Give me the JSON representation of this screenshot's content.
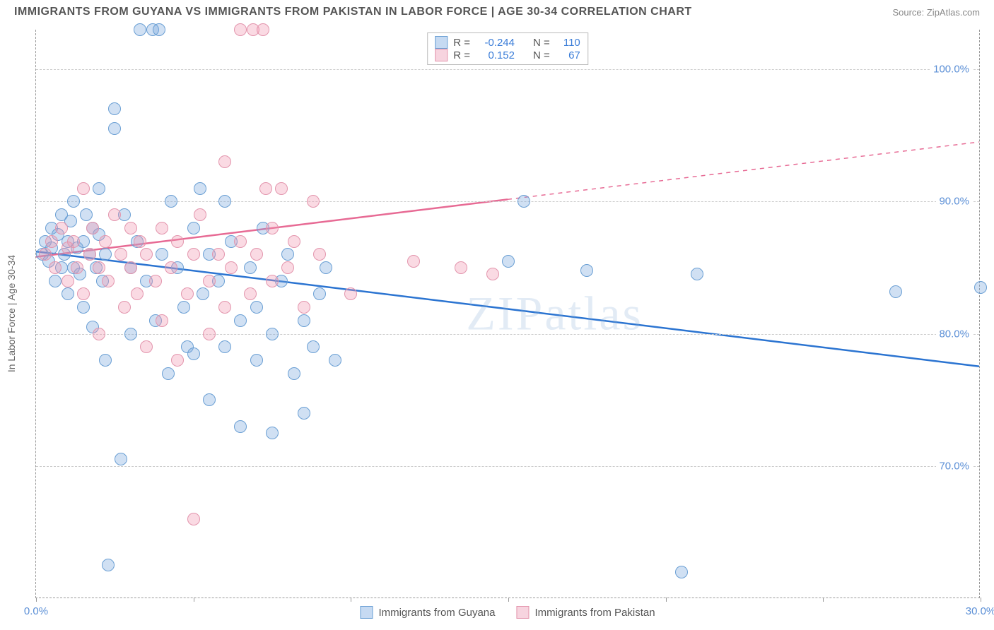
{
  "header": {
    "title": "IMMIGRANTS FROM GUYANA VS IMMIGRANTS FROM PAKISTAN IN LABOR FORCE | AGE 30-34 CORRELATION CHART",
    "source": "Source: ZipAtlas.com"
  },
  "chart": {
    "type": "scatter",
    "y_axis_label": "In Labor Force | Age 30-34",
    "watermark": "ZIPatlas",
    "background_color": "#ffffff",
    "grid_color": "#d0d0d0",
    "axis_color": "#999999",
    "x_domain": [
      0,
      30
    ],
    "y_domain": [
      60,
      103
    ],
    "y_ticks": [
      70,
      80,
      90,
      100
    ],
    "y_tick_labels": [
      "70.0%",
      "80.0%",
      "90.0%",
      "100.0%"
    ],
    "x_ticks": [
      0,
      5,
      10,
      15,
      20,
      25,
      30
    ],
    "x_tick_labels": {
      "0": "0.0%",
      "30": "30.0%"
    },
    "point_radius": 9,
    "point_stroke_width": 1.5,
    "series": [
      {
        "name": "Immigrants from Guyana",
        "fill_color": "rgba(120,165,220,0.35)",
        "stroke_color": "#6a9fd4",
        "swatch_fill": "#c6daf2",
        "swatch_border": "#6a9fd4",
        "R": "-0.244",
        "N": "110",
        "trend": {
          "x1": 0,
          "y1": 86.2,
          "x2": 30,
          "y2": 77.5,
          "solid_until_x": 30,
          "color": "#2b74d1",
          "width": 2.5
        },
        "points": [
          [
            0.2,
            86
          ],
          [
            0.3,
            87
          ],
          [
            0.4,
            85.5
          ],
          [
            0.5,
            88
          ],
          [
            0.5,
            86.5
          ],
          [
            0.6,
            84
          ],
          [
            0.7,
            87.5
          ],
          [
            0.8,
            85
          ],
          [
            0.8,
            89
          ],
          [
            0.9,
            86
          ],
          [
            1.0,
            87
          ],
          [
            1.0,
            83
          ],
          [
            1.1,
            88.5
          ],
          [
            1.2,
            85
          ],
          [
            1.2,
            90
          ],
          [
            1.3,
            86.5
          ],
          [
            1.4,
            84.5
          ],
          [
            1.5,
            87
          ],
          [
            1.5,
            82
          ],
          [
            1.6,
            89
          ],
          [
            1.7,
            86
          ],
          [
            1.8,
            88
          ],
          [
            1.8,
            80.5
          ],
          [
            1.9,
            85
          ],
          [
            2.0,
            87.5
          ],
          [
            2.0,
            91
          ],
          [
            2.1,
            84
          ],
          [
            2.2,
            86
          ],
          [
            2.2,
            78
          ],
          [
            2.3,
            62.5
          ],
          [
            2.5,
            95.5
          ],
          [
            2.5,
            97
          ],
          [
            2.7,
            70.5
          ],
          [
            2.8,
            89
          ],
          [
            3.0,
            85
          ],
          [
            3.0,
            80
          ],
          [
            3.2,
            87
          ],
          [
            3.3,
            103
          ],
          [
            3.5,
            84
          ],
          [
            3.7,
            103
          ],
          [
            3.8,
            81
          ],
          [
            3.9,
            103
          ],
          [
            4.0,
            86
          ],
          [
            4.2,
            77
          ],
          [
            4.3,
            90
          ],
          [
            4.5,
            85
          ],
          [
            4.7,
            82
          ],
          [
            4.8,
            79
          ],
          [
            5.0,
            88
          ],
          [
            5.0,
            78.5
          ],
          [
            5.2,
            91
          ],
          [
            5.3,
            83
          ],
          [
            5.5,
            75
          ],
          [
            5.5,
            86
          ],
          [
            5.8,
            84
          ],
          [
            6.0,
            79
          ],
          [
            6.0,
            90
          ],
          [
            6.2,
            87
          ],
          [
            6.5,
            81
          ],
          [
            6.5,
            73
          ],
          [
            6.8,
            85
          ],
          [
            7.0,
            78
          ],
          [
            7.0,
            82
          ],
          [
            7.2,
            88
          ],
          [
            7.5,
            80
          ],
          [
            7.5,
            72.5
          ],
          [
            7.8,
            84
          ],
          [
            8.0,
            86
          ],
          [
            8.2,
            77
          ],
          [
            8.5,
            81
          ],
          [
            8.5,
            74
          ],
          [
            8.8,
            79
          ],
          [
            9.0,
            83
          ],
          [
            9.2,
            85
          ],
          [
            9.5,
            78
          ],
          [
            15.0,
            85.5
          ],
          [
            15.5,
            90
          ],
          [
            17.5,
            84.8
          ],
          [
            20.5,
            62
          ],
          [
            21.0,
            84.5
          ],
          [
            27.3,
            83.2
          ],
          [
            30.0,
            83.5
          ]
        ]
      },
      {
        "name": "Immigrants from Pakistan",
        "fill_color": "rgba(240,150,175,0.35)",
        "stroke_color": "#e395ad",
        "swatch_fill": "#f7d4df",
        "swatch_border": "#e395ad",
        "R": "0.152",
        "N": "67",
        "trend": {
          "x1": 0,
          "y1": 85.8,
          "x2": 30,
          "y2": 94.5,
          "solid_until_x": 15,
          "color": "#e76a94",
          "width": 2.5
        },
        "points": [
          [
            0.3,
            86
          ],
          [
            0.5,
            87
          ],
          [
            0.6,
            85
          ],
          [
            0.8,
            88
          ],
          [
            1.0,
            86.5
          ],
          [
            1.0,
            84
          ],
          [
            1.2,
            87
          ],
          [
            1.3,
            85
          ],
          [
            1.5,
            91
          ],
          [
            1.5,
            83
          ],
          [
            1.7,
            86
          ],
          [
            1.8,
            88
          ],
          [
            2.0,
            85
          ],
          [
            2.0,
            80
          ],
          [
            2.2,
            87
          ],
          [
            2.3,
            84
          ],
          [
            2.5,
            89
          ],
          [
            2.7,
            86
          ],
          [
            2.8,
            82
          ],
          [
            3.0,
            85
          ],
          [
            3.0,
            88
          ],
          [
            3.2,
            83
          ],
          [
            3.3,
            87
          ],
          [
            3.5,
            79
          ],
          [
            3.5,
            86
          ],
          [
            3.8,
            84
          ],
          [
            4.0,
            81
          ],
          [
            4.0,
            88
          ],
          [
            4.3,
            85
          ],
          [
            4.5,
            78
          ],
          [
            4.5,
            87
          ],
          [
            4.8,
            83
          ],
          [
            5.0,
            86
          ],
          [
            5.0,
            66
          ],
          [
            5.2,
            89
          ],
          [
            5.5,
            84
          ],
          [
            5.5,
            80
          ],
          [
            5.8,
            86
          ],
          [
            6.0,
            82
          ],
          [
            6.0,
            93
          ],
          [
            6.2,
            85
          ],
          [
            6.5,
            87
          ],
          [
            6.5,
            103
          ],
          [
            6.8,
            83
          ],
          [
            6.9,
            103
          ],
          [
            7.0,
            86
          ],
          [
            7.2,
            103
          ],
          [
            7.3,
            91
          ],
          [
            7.5,
            84
          ],
          [
            7.5,
            88
          ],
          [
            7.8,
            91
          ],
          [
            8.0,
            85
          ],
          [
            8.2,
            87
          ],
          [
            8.5,
            82
          ],
          [
            8.8,
            90
          ],
          [
            9.0,
            86
          ],
          [
            10.0,
            83
          ],
          [
            12.0,
            85.5
          ],
          [
            13.5,
            85
          ],
          [
            14.5,
            84.5
          ]
        ]
      }
    ],
    "legend_top": {
      "R_label": "R =",
      "N_label": "N ="
    }
  }
}
